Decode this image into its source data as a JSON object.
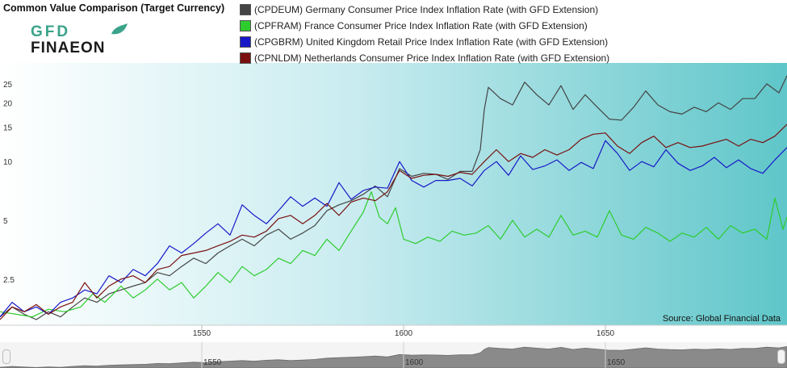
{
  "title": "Common Value Comparison (Target Currency)",
  "logo": {
    "line1": "GFD",
    "line2": "FINAEON"
  },
  "legend": [
    {
      "label": "(CPDEUM) Germany Consumer Price Index Inflation Rate (with GFD Extension)",
      "color": "#444444"
    },
    {
      "label": "(CPFRAM) France Consumer Price Index Inflation Rate (with GFD Extension)",
      "color": "#2ecc2e"
    },
    {
      "label": "(CPGBRM) United Kingdom Retail Price Index Inflation Rate (with GFD Extension)",
      "color": "#1818c8"
    },
    {
      "label": "(CPNLDM) Netherlands Consumer Price Index Inflation Rate (with GFD Extension)",
      "color": "#7a1010"
    }
  ],
  "source": "Source: Global Financial Data",
  "chart_data": {
    "type": "line",
    "yscale": "log",
    "ylim": [
      1.45,
      32
    ],
    "xlim": [
      1500,
      1695
    ],
    "yticks": [
      2.5,
      5,
      10,
      15,
      20,
      25
    ],
    "ytick_labels": [
      "2.5",
      "5",
      "10",
      "15",
      "20",
      "25"
    ],
    "xticks": [
      1550,
      1600,
      1650
    ],
    "xtick_labels": [
      "1550",
      "1600",
      "1650"
    ],
    "grid": false,
    "series": [
      {
        "name": "(CPDEUM) Germany Consumer Price Index Inflation Rate (with GFD Extension)",
        "color": "#444444",
        "x": [
          1500,
          1503,
          1506,
          1509,
          1512,
          1515,
          1518,
          1521,
          1524,
          1527,
          1530,
          1533,
          1536,
          1539,
          1542,
          1545,
          1548,
          1551,
          1554,
          1557,
          1560,
          1563,
          1566,
          1569,
          1572,
          1575,
          1578,
          1581,
          1584,
          1587,
          1590,
          1593,
          1596,
          1599,
          1602,
          1605,
          1608,
          1611,
          1614,
          1617,
          1619,
          1620,
          1621,
          1624,
          1627,
          1630,
          1633,
          1636,
          1639,
          1642,
          1645,
          1648,
          1651,
          1654,
          1657,
          1660,
          1663,
          1666,
          1669,
          1672,
          1675,
          1678,
          1681,
          1684,
          1687,
          1690,
          1693,
          1695
        ],
        "y": [
          1.6,
          1.8,
          1.65,
          1.55,
          1.7,
          1.6,
          1.8,
          2.0,
          1.9,
          2.1,
          2.2,
          2.3,
          2.4,
          2.7,
          2.6,
          2.9,
          3.2,
          3.0,
          3.4,
          3.7,
          4.0,
          3.7,
          4.2,
          4.5,
          4.0,
          4.3,
          4.7,
          5.6,
          6.0,
          6.3,
          6.8,
          7.5,
          6.6,
          9.2,
          8.4,
          8.7,
          8.6,
          8.1,
          8.9,
          8.9,
          11.5,
          18.5,
          24.0,
          21.0,
          19.5,
          25.5,
          22.0,
          19.5,
          24.5,
          18.5,
          22.0,
          19.0,
          16.5,
          16.3,
          19.0,
          23.0,
          19.5,
          18.0,
          17.5,
          19.0,
          18.0,
          20.0,
          18.5,
          21.0,
          21.0,
          25.0,
          22.5,
          27.5
        ]
      },
      {
        "name": "(CPFRAM) France Consumer Price Index Inflation Rate (with GFD Extension)",
        "color": "#2ecc2e",
        "x": [
          1500,
          1504,
          1508,
          1512,
          1516,
          1520,
          1523,
          1526,
          1530,
          1533,
          1536,
          1539,
          1542,
          1545,
          1548,
          1551,
          1554,
          1557,
          1560,
          1563,
          1566,
          1569,
          1572,
          1575,
          1578,
          1581,
          1584,
          1587,
          1590,
          1592,
          1594,
          1596,
          1598,
          1600,
          1603,
          1606,
          1609,
          1612,
          1615,
          1618,
          1621,
          1624,
          1627,
          1630,
          1633,
          1636,
          1639,
          1642,
          1645,
          1648,
          1651,
          1654,
          1657,
          1660,
          1663,
          1666,
          1669,
          1672,
          1675,
          1678,
          1681,
          1684,
          1687,
          1690,
          1692,
          1694,
          1695
        ],
        "y": [
          1.7,
          1.65,
          1.6,
          1.75,
          1.7,
          1.8,
          2.1,
          1.9,
          2.3,
          2.0,
          2.2,
          2.5,
          2.2,
          2.4,
          2.0,
          2.3,
          2.7,
          2.4,
          2.9,
          2.6,
          2.8,
          3.2,
          3.0,
          3.5,
          3.3,
          4.0,
          3.5,
          4.4,
          5.5,
          7.0,
          5.2,
          4.8,
          5.8,
          4.0,
          3.8,
          4.1,
          3.9,
          4.4,
          4.2,
          4.3,
          4.7,
          4.0,
          5.0,
          4.1,
          4.5,
          4.1,
          5.3,
          4.2,
          4.4,
          4.1,
          5.6,
          4.2,
          4.0,
          4.6,
          4.3,
          3.9,
          4.3,
          4.1,
          4.6,
          4.0,
          4.7,
          4.3,
          4.5,
          4.0,
          6.5,
          4.5,
          5.2
        ]
      },
      {
        "name": "(CPGBRM) United Kingdom Retail Price Index Inflation Rate (with GFD Extension)",
        "color": "#1818c8",
        "x": [
          1500,
          1503,
          1506,
          1509,
          1512,
          1515,
          1518,
          1521,
          1524,
          1527,
          1530,
          1533,
          1536,
          1539,
          1542,
          1545,
          1548,
          1551,
          1554,
          1557,
          1560,
          1563,
          1566,
          1569,
          1572,
          1575,
          1578,
          1581,
          1584,
          1587,
          1590,
          1593,
          1596,
          1599,
          1602,
          1605,
          1608,
          1611,
          1614,
          1617,
          1620,
          1623,
          1626,
          1629,
          1632,
          1635,
          1638,
          1641,
          1644,
          1647,
          1650,
          1653,
          1656,
          1659,
          1662,
          1665,
          1668,
          1671,
          1674,
          1677,
          1680,
          1683,
          1686,
          1689,
          1692,
          1695
        ],
        "y": [
          1.6,
          1.9,
          1.7,
          1.8,
          1.65,
          1.9,
          2.0,
          2.2,
          2.1,
          2.6,
          2.4,
          2.8,
          2.6,
          3.0,
          3.7,
          3.4,
          3.8,
          4.3,
          4.8,
          4.2,
          6.0,
          5.3,
          4.8,
          5.6,
          6.6,
          5.9,
          6.5,
          5.9,
          7.8,
          6.4,
          7.1,
          7.4,
          7.3,
          10.0,
          8.0,
          7.4,
          8.0,
          8.0,
          8.2,
          7.5,
          9.0,
          10.0,
          8.5,
          10.7,
          9.1,
          9.5,
          10.2,
          9.0,
          9.9,
          9.2,
          12.8,
          11.0,
          9.0,
          10.0,
          9.4,
          11.5,
          9.8,
          9.0,
          9.5,
          10.5,
          9.3,
          10.2,
          9.2,
          8.7,
          10.2,
          11.8
        ]
      },
      {
        "name": "(CPNLDM) Netherlands Consumer Price Index Inflation Rate (with GFD Extension)",
        "color": "#7a1010",
        "x": [
          1500,
          1503,
          1506,
          1509,
          1512,
          1515,
          1518,
          1521,
          1524,
          1527,
          1530,
          1533,
          1536,
          1539,
          1542,
          1545,
          1548,
          1551,
          1554,
          1557,
          1560,
          1563,
          1566,
          1569,
          1572,
          1575,
          1578,
          1581,
          1584,
          1587,
          1590,
          1593,
          1596,
          1599,
          1602,
          1605,
          1608,
          1611,
          1614,
          1617,
          1620,
          1623,
          1626,
          1629,
          1632,
          1635,
          1638,
          1641,
          1644,
          1647,
          1650,
          1653,
          1656,
          1659,
          1662,
          1665,
          1668,
          1671,
          1674,
          1677,
          1680,
          1683,
          1686,
          1689,
          1692,
          1695
        ],
        "y": [
          1.55,
          1.8,
          1.7,
          1.85,
          1.65,
          1.8,
          1.9,
          2.4,
          2.0,
          2.3,
          2.5,
          2.6,
          2.4,
          2.8,
          2.9,
          3.3,
          3.4,
          3.5,
          3.7,
          3.9,
          4.2,
          4.1,
          4.4,
          5.1,
          5.3,
          4.8,
          5.3,
          6.1,
          5.3,
          6.2,
          6.5,
          6.3,
          7.0,
          9.0,
          8.2,
          8.5,
          8.6,
          8.4,
          8.8,
          8.6,
          10.0,
          11.5,
          10.0,
          11.0,
          10.5,
          11.5,
          10.8,
          11.5,
          13.0,
          13.8,
          14.0,
          12.0,
          11.0,
          12.5,
          13.5,
          11.8,
          12.5,
          11.8,
          12.0,
          12.5,
          13.0,
          12.0,
          13.0,
          12.5,
          13.5,
          15.5
        ]
      }
    ],
    "navigator": {
      "xlim": [
        1500,
        1695
      ],
      "xticks": [
        1550,
        1600,
        1650
      ],
      "xtick_labels": [
        "1550",
        "1600",
        "1650"
      ]
    }
  }
}
